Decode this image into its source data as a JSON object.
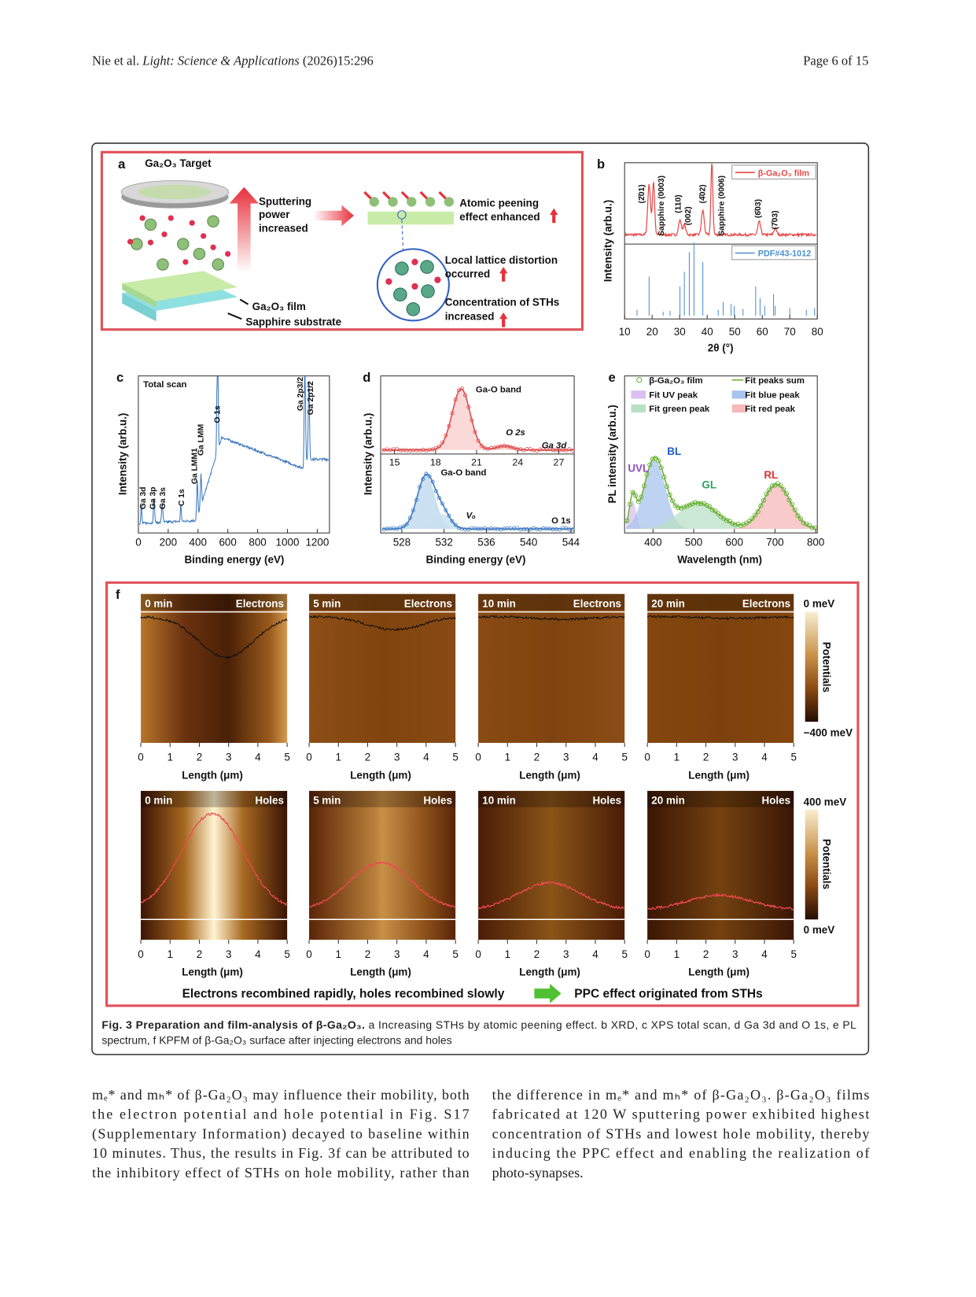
{
  "header": {
    "authors": "Nie et al.",
    "journal": "Light: Science & Applications",
    "citation": "(2026)15:296",
    "page": "Page 6 of 15"
  },
  "figure": {
    "a": {
      "label": "a",
      "target": "Ga₂O₃ Target",
      "sputtering": [
        "Sputtering",
        "power",
        "increased"
      ],
      "peening": [
        "Atomic peening",
        "effect enhanced"
      ],
      "distortion": [
        "Local lattice distortion",
        "occurred"
      ],
      "concentration": [
        "Concentration of STHs",
        "increased"
      ],
      "film": "Ga₂O₃ film",
      "substrate": "Sapphire substrate"
    },
    "b": {
      "label": "b",
      "ylabel": "Intensity (arb.u.)",
      "xlabel": "2θ (°)",
      "xticks": [
        "10",
        "20",
        "30",
        "40",
        "50",
        "60",
        "70",
        "80"
      ],
      "legend": [
        "β-Ga₂O₃ film",
        "PDF#43-1012"
      ],
      "peaks": [
        "(2̄01)",
        "Sapphire (0003)",
        "(110)",
        "(002)",
        "(4̄02)",
        "Sapphire (0006)",
        "(6̄03)",
        "(7̄03)"
      ]
    },
    "c": {
      "label": "c",
      "title": "Total scan",
      "ylabel": "Intensity (arb.u.)",
      "xlabel": "Binding energy (eV)",
      "xticks": [
        "0",
        "200",
        "400",
        "600",
        "800",
        "1000",
        "1200"
      ],
      "peaks": [
        "Ga 3d",
        "Ga 3p",
        "Ga 3s",
        "C 1s",
        "Ga LMM1",
        "Ga LMM",
        "O 1s",
        "Ga 2p3/2",
        "Ga 2p1/2"
      ]
    },
    "d": {
      "label": "d",
      "ylabel": "Intensity (arb.u.)",
      "xlabel": "Binding energy (eV)",
      "top_xticks": [
        "15",
        "18",
        "21",
        "24",
        "27"
      ],
      "bottom_xticks": [
        "528",
        "532",
        "536",
        "540",
        "544"
      ],
      "labels": [
        "Ga-O band",
        "O 2s",
        "Ga 3d",
        "Ga-O band",
        "Vₒ",
        "O 1s"
      ]
    },
    "e": {
      "label": "e",
      "ylabel": "PL intensity (arb.u.)",
      "xlabel": "Wavelength (nm)",
      "xticks": [
        "400",
        "500",
        "600",
        "700",
        "800"
      ],
      "legend": [
        "β-Ga₂O₃ film",
        "Fit peaks sum",
        "Fit UV peak",
        "Fit blue peak",
        "Fit green peak",
        "Fit red peak"
      ],
      "peaks": [
        "BL",
        "UVL",
        "GL",
        "RL"
      ]
    },
    "f": {
      "label": "f",
      "times": [
        "0 min",
        "5 min",
        "10 min",
        "20 min"
      ],
      "carriers": [
        "Electrons",
        "Holes"
      ],
      "xticks": [
        "0",
        "1",
        "2",
        "3",
        "4",
        "5"
      ],
      "xlabel": "Length (μm)",
      "colorbar_electrons": [
        "0 meV",
        "Potentials",
        "−400 meV"
      ],
      "colorbar_holes": [
        "400 meV",
        "Potentials",
        "0 meV"
      ],
      "conclusion": "Electrons recombined rapidly, holes recombined slowly",
      "effect": "PPC effect originated from STHs"
    }
  },
  "caption": {
    "title": "Fig. 3 Preparation and film-analysis of β-Ga₂O₃.",
    "line1": " a Increasing STHs by atomic peening effect. b XRD, c XPS total scan, d Ga 3d and O 1s, e PL",
    "line2": "spectrum, f KPFM of β-Ga₂O₃ surface after injecting electrons and holes"
  },
  "body": {
    "left": [
      "mₑ* and mₕ* of β-Ga₂O₃ may influence their mobility, both",
      "the electron potential and hole potential in Fig. S17",
      "(Supplementary Information) decayed to baseline within",
      "10 minutes. Thus, the results in Fig. 3f can be attributed to",
      "the inhibitory effect of STHs on hole mobility, rather than"
    ],
    "right": [
      "the difference in mₑ* and mₕ* of β-Ga₂O₃. β-Ga₂O₃ films",
      "fabricated at 120 W sputtering power exhibited highest",
      "concentration of STHs and lowest hole mobility, thereby",
      "inducing the PPC effect and enabling the realization of",
      "photo-synapses."
    ]
  }
}
